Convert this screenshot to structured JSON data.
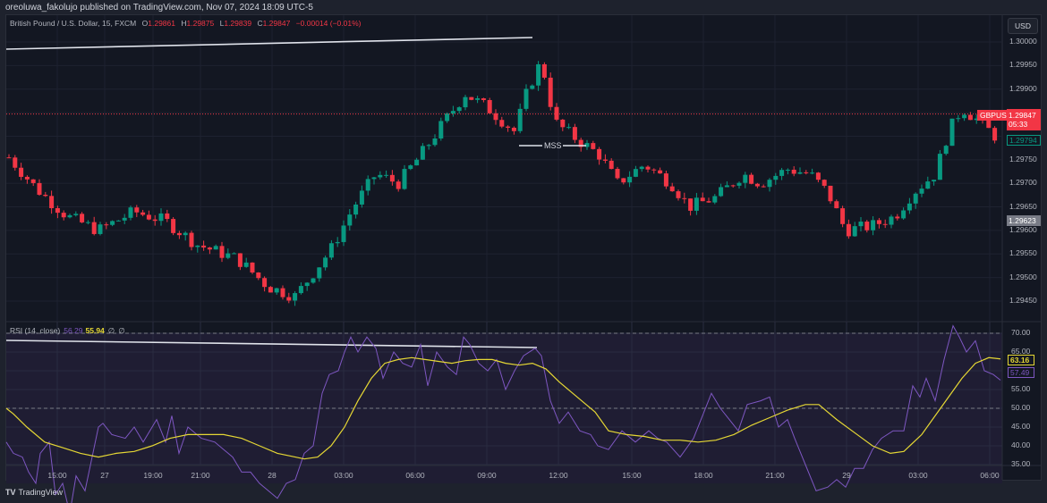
{
  "header": {
    "published": "oreoluwa_fakolujo published on TradingView.com, Nov 07, 2024 18:09 UTC-5"
  },
  "legend": {
    "symbol": "British Pound / U.S. Dollar, 15, FXCM",
    "o_label": "O",
    "o": "1.29861",
    "h_label": "H",
    "h": "1.29875",
    "l_label": "L",
    "l": "1.29839",
    "c_label": "C",
    "c": "1.29847",
    "change": "−0.00014 (−0.01%)"
  },
  "currency_button": "USD",
  "price_tags": {
    "symbol": "GBPUSD",
    "last": "1.29847",
    "countdown": "05:33",
    "green": "1.29794",
    "gray": "1.29623"
  },
  "annotation": {
    "mss": "MSS"
  },
  "rsi": {
    "label": "RSI (14, close)",
    "value": "56.29",
    "ma": "55.94",
    "e1": "∅",
    "e2": "∅",
    "tag_ma": "63.16",
    "tag_rsi": "57.49"
  },
  "branding": {
    "logo": "TV",
    "name": "TradingView"
  },
  "colors": {
    "up": "#089981",
    "down": "#f23645",
    "rsi": "#7e57c2",
    "rsi_ma": "#e5d734",
    "bg": "#131722",
    "rsi_bg": "#1f1d33"
  },
  "chart_data": [
    {
      "type": "candlestick",
      "title": "British Pound / U.S. Dollar, 15, FXCM",
      "ylabel": "USD",
      "ylim": [
        1.2942,
        1.3003
      ],
      "y_ticks": [
        "1.30000",
        "1.29950",
        "1.29900",
        "1.29850",
        "1.29800",
        "1.29750",
        "1.29700",
        "1.29650",
        "1.29600",
        "1.29550",
        "1.29500",
        "1.29450"
      ],
      "x_ticks": [
        "15:00",
        "27",
        "19:00",
        "21:00",
        "28",
        "03:00",
        "06:00",
        "09:00",
        "12:00",
        "15:00",
        "18:00",
        "21:00",
        "29",
        "03:00",
        "06:00"
      ],
      "last_price": 1.29847,
      "annotations": [
        "MSS",
        "trendline (higher high)"
      ]
    },
    {
      "type": "line",
      "title": "RSI (14, close)",
      "series": [
        {
          "name": "RSI",
          "last": 56.29
        },
        {
          "name": "RSI MA",
          "last": 55.94
        }
      ],
      "y_ticks": [
        "70.00",
        "65.00",
        "60.00",
        "55.00",
        "50.00",
        "45.00",
        "40.00",
        "35.00"
      ],
      "ylim": [
        34,
        72
      ],
      "bands": [
        70,
        50
      ],
      "annotations": [
        "trendline (lower high)"
      ]
    }
  ]
}
